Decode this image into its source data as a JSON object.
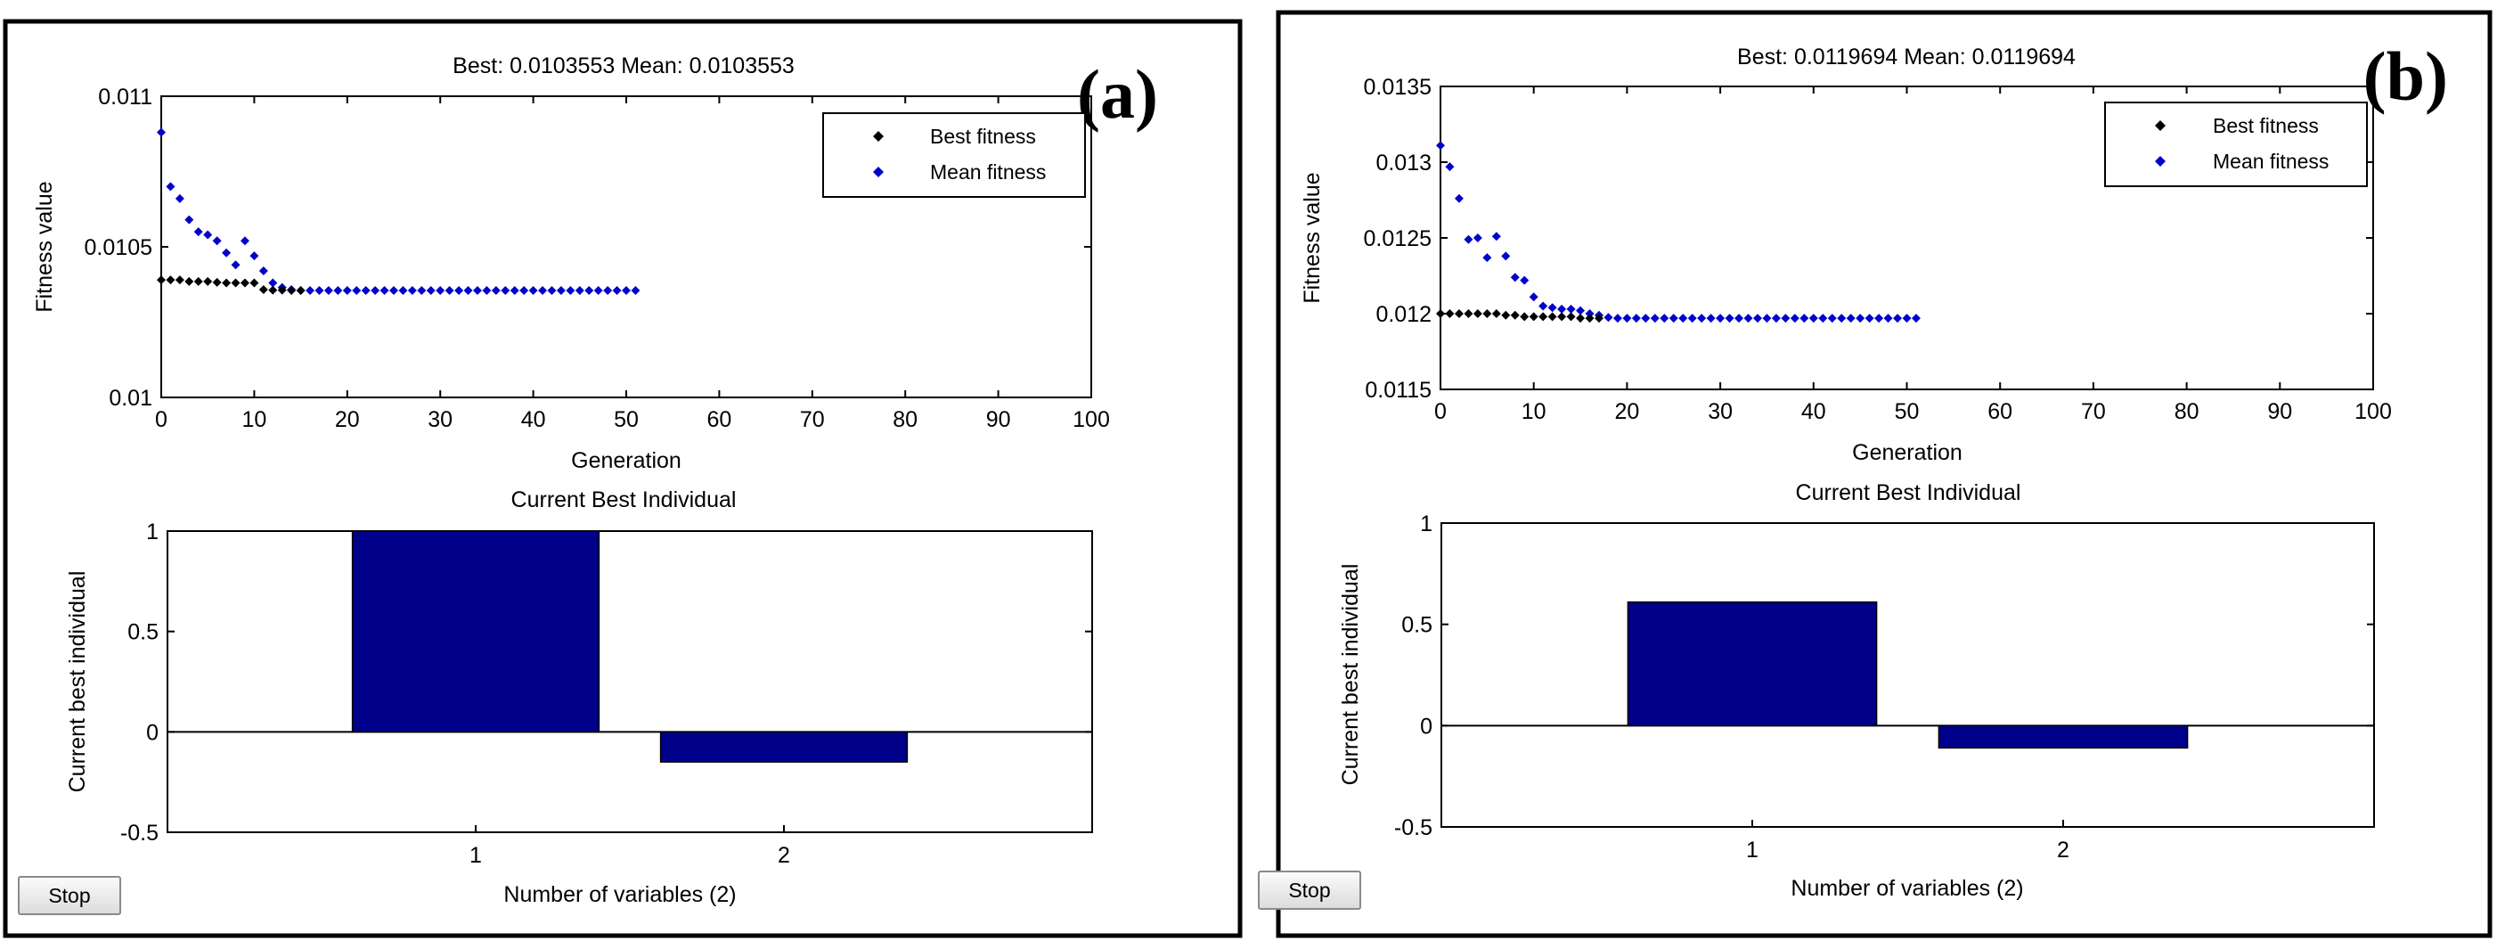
{
  "panels": [
    {
      "label": "(a)",
      "stop_label": "Stop",
      "chart_data": [
        {
          "type": "scatter",
          "title": "Best: 0.0103553 Mean: 0.0103553",
          "xlabel": "Generation",
          "ylabel": "Fitness value",
          "xlim": [
            0,
            100
          ],
          "ylim": [
            0.01,
            0.011
          ],
          "xticks": [
            0,
            10,
            20,
            30,
            40,
            50,
            60,
            70,
            80,
            90,
            100
          ],
          "yticks": [
            0.01,
            0.0105,
            0.011
          ],
          "ytick_labels": [
            "0.01",
            "0.0105",
            "0.011"
          ],
          "legend": [
            "Best fitness",
            "Mean fitness"
          ],
          "legend_placement": "top-right",
          "series": [
            {
              "name": "Best fitness",
              "color": "#000000",
              "x": [
                0,
                1,
                2,
                3,
                4,
                5,
                6,
                7,
                8,
                9,
                10,
                11,
                12,
                13,
                14,
                15
              ],
              "y": [
                0.01039,
                0.01039,
                0.01039,
                0.010385,
                0.010385,
                0.010385,
                0.010382,
                0.01038,
                0.01038,
                0.01038,
                0.01038,
                0.010358,
                0.010356,
                0.010356,
                0.010355,
                0.010355
              ]
            },
            {
              "name": "Mean fitness",
              "color": "#0000cc",
              "x": [
                0,
                1,
                2,
                3,
                4,
                5,
                6,
                7,
                8,
                9,
                10,
                11,
                12,
                13,
                14,
                15,
                16,
                17,
                18,
                19,
                20,
                21,
                22,
                23,
                24,
                25,
                26,
                27,
                28,
                29,
                30,
                31,
                32,
                33,
                34,
                35,
                36,
                37,
                38,
                39,
                40,
                41,
                42,
                43,
                44,
                45,
                46,
                47,
                48,
                49,
                50,
                51
              ],
              "y": [
                0.01088,
                0.0107,
                0.01066,
                0.01059,
                0.01055,
                0.01054,
                0.01052,
                0.01048,
                0.01044,
                0.01052,
                0.01047,
                0.01042,
                0.01038,
                0.010365,
                0.010358,
                0.010355,
                0.010355,
                0.010355,
                0.010355,
                0.010355,
                0.010355,
                0.010355,
                0.010355,
                0.010355,
                0.010355,
                0.010355,
                0.010355,
                0.010355,
                0.010355,
                0.010355,
                0.010355,
                0.010355,
                0.010355,
                0.010355,
                0.010355,
                0.010355,
                0.010355,
                0.010355,
                0.010355,
                0.010355,
                0.010355,
                0.010355,
                0.010355,
                0.010355,
                0.010355,
                0.010355,
                0.010355,
                0.010355,
                0.010355,
                0.010355,
                0.010355,
                0.010355
              ]
            }
          ]
        },
        {
          "type": "bar",
          "title": "Current Best Individual",
          "xlabel": "Number of variables (2)",
          "ylabel": "Current best individual",
          "categories": [
            "1",
            "2"
          ],
          "values": [
            1.0,
            -0.15
          ],
          "ylim": [
            -0.5,
            1
          ],
          "yticks": [
            -0.5,
            0,
            0.5,
            1
          ],
          "ytick_labels": [
            "-0.5",
            "0",
            "0.5",
            "1"
          ],
          "color": "#00008b"
        }
      ]
    },
    {
      "label": "(b)",
      "stop_label": "Stop",
      "chart_data": [
        {
          "type": "scatter",
          "title": "Best: 0.0119694 Mean: 0.0119694",
          "xlabel": "Generation",
          "ylabel": "Fitness value",
          "xlim": [
            0,
            100
          ],
          "ylim": [
            0.0115,
            0.0135
          ],
          "xticks": [
            0,
            10,
            20,
            30,
            40,
            50,
            60,
            70,
            80,
            90,
            100
          ],
          "yticks": [
            0.0115,
            0.012,
            0.0125,
            0.013,
            0.0135
          ],
          "ytick_labels": [
            "0.0115",
            "0.012",
            "0.0125",
            "0.013",
            "0.0135"
          ],
          "legend": [
            "Best fitness",
            "Mean fitness"
          ],
          "legend_placement": "top-right",
          "series": [
            {
              "name": "Best fitness",
              "color": "#000000",
              "x": [
                0,
                1,
                2,
                3,
                4,
                5,
                6,
                7,
                8,
                9,
                10,
                11,
                12,
                13,
                14,
                15,
                16,
                17
              ],
              "y": [
                0.012,
                0.012,
                0.012,
                0.012,
                0.012,
                0.012,
                0.012,
                0.01199,
                0.01199,
                0.01198,
                0.01198,
                0.01198,
                0.01198,
                0.01198,
                0.01198,
                0.01197,
                0.01197,
                0.01197
              ]
            },
            {
              "name": "Mean fitness",
              "color": "#0000cc",
              "x": [
                0,
                1,
                2,
                3,
                4,
                5,
                6,
                7,
                8,
                9,
                10,
                11,
                12,
                13,
                14,
                15,
                16,
                17,
                18,
                19,
                20,
                21,
                22,
                23,
                24,
                25,
                26,
                27,
                28,
                29,
                30,
                31,
                32,
                33,
                34,
                35,
                36,
                37,
                38,
                39,
                40,
                41,
                42,
                43,
                44,
                45,
                46,
                47,
                48,
                49,
                50,
                51
              ],
              "y": [
                0.01311,
                0.01297,
                0.01276,
                0.01249,
                0.0125,
                0.01237,
                0.01251,
                0.01238,
                0.01224,
                0.01222,
                0.01211,
                0.01205,
                0.01204,
                0.01203,
                0.01203,
                0.01202,
                0.012,
                0.01199,
                0.011975,
                0.01197,
                0.01197,
                0.01197,
                0.01197,
                0.01197,
                0.01197,
                0.01197,
                0.01197,
                0.01197,
                0.01197,
                0.01197,
                0.01197,
                0.01197,
                0.01197,
                0.01197,
                0.01197,
                0.01197,
                0.01197,
                0.01197,
                0.01197,
                0.01197,
                0.01197,
                0.01197,
                0.01197,
                0.01197,
                0.01197,
                0.01197,
                0.01197,
                0.01197,
                0.01197,
                0.01197,
                0.01197,
                0.01197
              ]
            }
          ]
        },
        {
          "type": "bar",
          "title": "Current Best Individual",
          "xlabel": "Number of variables (2)",
          "ylabel": "Current best individual",
          "categories": [
            "1",
            "2"
          ],
          "values": [
            0.61,
            -0.11
          ],
          "ylim": [
            -0.5,
            1
          ],
          "yticks": [
            -0.5,
            0,
            0.5,
            1
          ],
          "ytick_labels": [
            "-0.5",
            "0",
            "0.5",
            "1"
          ],
          "color": "#00008b"
        }
      ]
    }
  ]
}
